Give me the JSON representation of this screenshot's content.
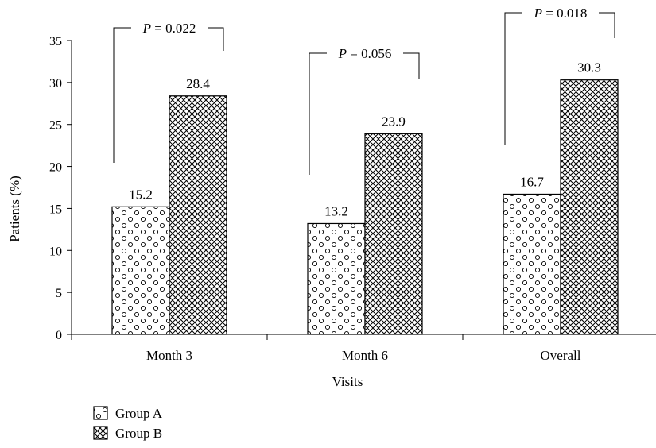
{
  "chart_data": {
    "type": "bar",
    "categories": [
      "Month 3",
      "Month 6",
      "Overall"
    ],
    "series": [
      {
        "name": "Group A",
        "values": [
          15.2,
          13.2,
          16.7
        ],
        "pattern": "dots"
      },
      {
        "name": "Group B",
        "values": [
          28.4,
          23.9,
          30.3
        ],
        "pattern": "crosshatch"
      }
    ],
    "data_labels": [
      [
        "15.2",
        "28.4"
      ],
      [
        "13.2",
        "23.9"
      ],
      [
        "16.7",
        "30.3"
      ]
    ],
    "p_values": [
      "P = 0.022",
      "P = 0.056",
      "P = 0.018"
    ],
    "xlabel": "Visits",
    "ylabel": "Patients (%)",
    "ylim": [
      0,
      35
    ],
    "yticks": [
      0,
      5,
      10,
      15,
      20,
      25,
      30,
      35
    ],
    "grid": false,
    "legend_position": "bottom-left"
  }
}
